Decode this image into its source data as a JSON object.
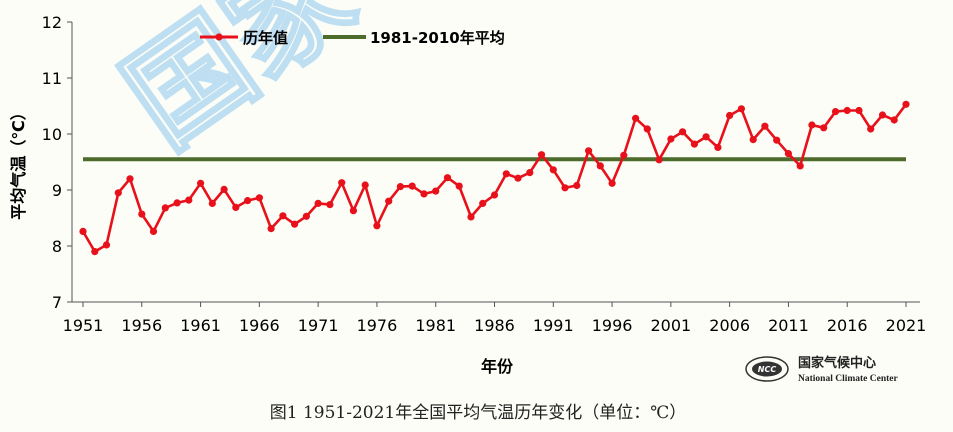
{
  "chart_data": {
    "type": "line",
    "caption": "图1  1951-2021年全国平均气温历年变化（单位：℃）",
    "xlabel": "年份",
    "ylabel": "平均气温（℃）",
    "ylim": [
      7,
      12
    ],
    "yticks": [
      7,
      8,
      9,
      10,
      11,
      12
    ],
    "xlim": [
      1951,
      2021
    ],
    "xticks": [
      1951,
      1956,
      1961,
      1966,
      1971,
      1976,
      1981,
      1986,
      1991,
      1996,
      2001,
      2006,
      2011,
      2016,
      2021
    ],
    "grid": false,
    "legend_position": "top",
    "series": [
      {
        "name": "历年值",
        "color": "#e8101a",
        "x": [
          1951,
          1952,
          1953,
          1954,
          1955,
          1956,
          1957,
          1958,
          1959,
          1960,
          1961,
          1962,
          1963,
          1964,
          1965,
          1966,
          1967,
          1968,
          1969,
          1970,
          1971,
          1972,
          1973,
          1974,
          1975,
          1976,
          1977,
          1978,
          1979,
          1980,
          1981,
          1982,
          1983,
          1984,
          1985,
          1986,
          1987,
          1988,
          1989,
          1990,
          1991,
          1992,
          1993,
          1994,
          1995,
          1996,
          1997,
          1998,
          1999,
          2000,
          2001,
          2002,
          2003,
          2004,
          2005,
          2006,
          2007,
          2008,
          2009,
          2010,
          2011,
          2012,
          2013,
          2014,
          2015,
          2016,
          2017,
          2018,
          2019,
          2020,
          2021
        ],
        "values": [
          8.26,
          7.9,
          8.02,
          8.95,
          9.2,
          8.57,
          8.26,
          8.68,
          8.77,
          8.82,
          9.12,
          8.76,
          9.01,
          8.69,
          8.81,
          8.86,
          8.31,
          8.54,
          8.39,
          8.53,
          8.76,
          8.74,
          9.13,
          8.63,
          9.09,
          8.36,
          8.8,
          9.06,
          9.07,
          8.93,
          8.98,
          9.22,
          9.07,
          8.52,
          8.76,
          8.91,
          9.29,
          9.21,
          9.31,
          9.63,
          9.36,
          9.04,
          9.08,
          9.7,
          9.43,
          9.12,
          9.62,
          10.28,
          10.09,
          9.54,
          9.91,
          10.04,
          9.82,
          9.95,
          9.76,
          10.33,
          10.45,
          9.9,
          10.14,
          9.89,
          9.65,
          9.43,
          10.16,
          10.11,
          10.4,
          10.42,
          10.42,
          10.09,
          10.34,
          10.25,
          10.53
        ]
      },
      {
        "name": "1981-2010年平均",
        "color": "#4d6b2a",
        "x": [
          1951,
          2021
        ],
        "values": [
          9.55,
          9.55
        ]
      }
    ]
  },
  "watermark": {
    "text": "国家"
  },
  "logo": {
    "cn": "国家气候中心",
    "en": "National Climate Center",
    "badge": "NCC"
  }
}
